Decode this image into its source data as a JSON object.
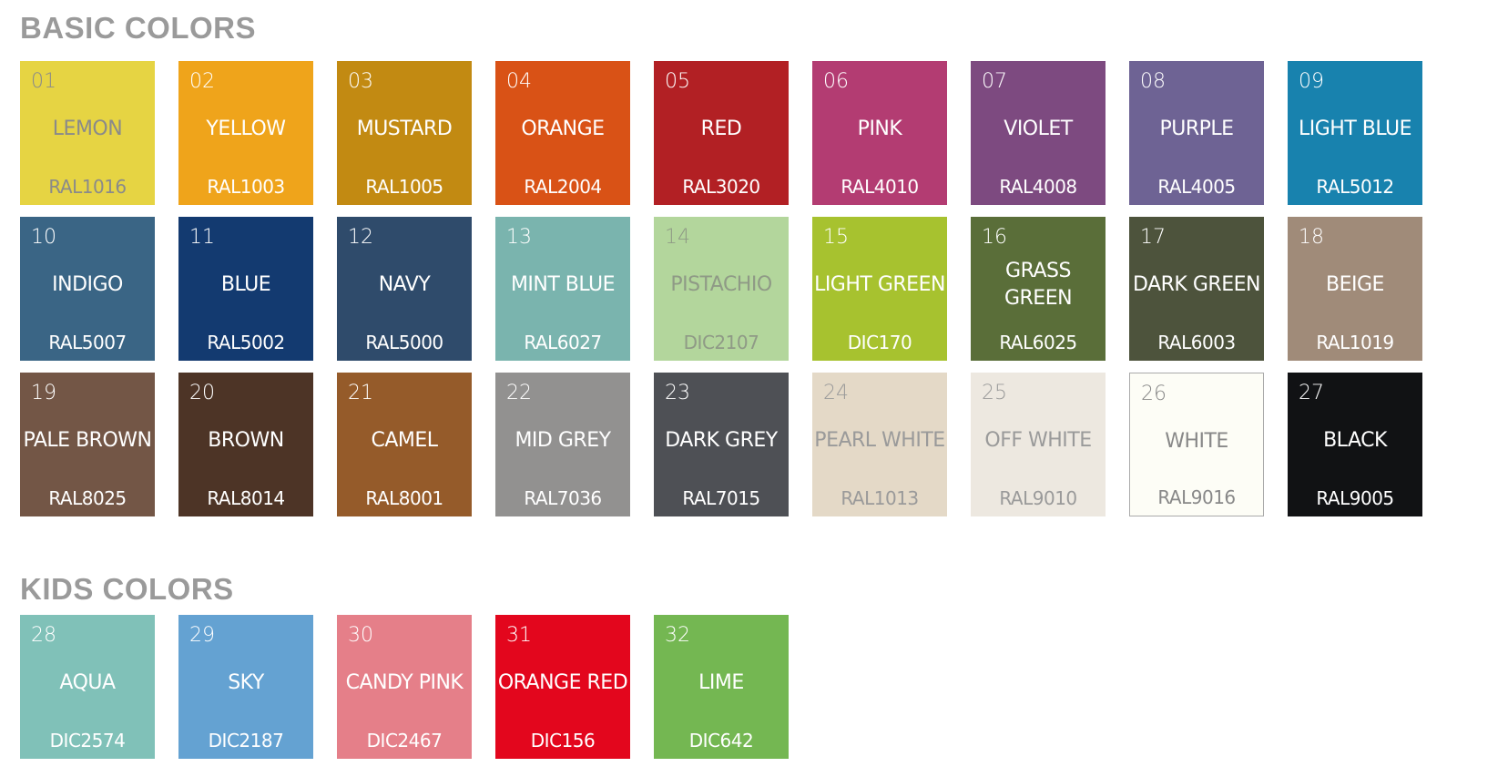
{
  "basic": {
    "title": "BASIC COLORS",
    "swatches": [
      {
        "num": "01",
        "name": "LEMON",
        "code": "RAL1016",
        "color": "#e6d443",
        "text": "#8a8a8a"
      },
      {
        "num": "02",
        "name": "YELLOW",
        "code": "RAL1003",
        "color": "#efa41b",
        "text": "#ffffff"
      },
      {
        "num": "03",
        "name": "MUSTARD",
        "code": "RAL1005",
        "color": "#c28a12",
        "text": "#ffffff"
      },
      {
        "num": "04",
        "name": "ORANGE",
        "code": "RAL2004",
        "color": "#d95216",
        "text": "#ffffff"
      },
      {
        "num": "05",
        "name": "RED",
        "code": "RAL3020",
        "color": "#b22024",
        "text": "#ffffff"
      },
      {
        "num": "06",
        "name": "PINK",
        "code": "RAL4010",
        "color": "#b33c72",
        "text": "#ffffff"
      },
      {
        "num": "07",
        "name": "VIOLET",
        "code": "RAL4008",
        "color": "#7d4a80",
        "text": "#ffffff"
      },
      {
        "num": "08",
        "name": "PURPLE",
        "code": "RAL4005",
        "color": "#6e6394",
        "text": "#ffffff"
      },
      {
        "num": "09",
        "name": "LIGHT BLUE",
        "code": "RAL5012",
        "color": "#1882ae",
        "text": "#ffffff"
      },
      {
        "num": "10",
        "name": "INDIGO",
        "code": "RAL5007",
        "color": "#3a6585",
        "text": "#ffffff"
      },
      {
        "num": "11",
        "name": "BLUE",
        "code": "RAL5002",
        "color": "#133a70",
        "text": "#ffffff"
      },
      {
        "num": "12",
        "name": "NAVY",
        "code": "RAL5000",
        "color": "#2f4b6b",
        "text": "#ffffff"
      },
      {
        "num": "13",
        "name": "MINT BLUE",
        "code": "RAL6027",
        "color": "#7ab4ae",
        "text": "#ffffff"
      },
      {
        "num": "14",
        "name": "PISTACHIO",
        "code": "DIC2107",
        "color": "#b3d69c",
        "text": "#8f9a86"
      },
      {
        "num": "15",
        "name": "LIGHT GREEN",
        "code": "DIC170",
        "color": "#a7c22f",
        "text": "#ffffff"
      },
      {
        "num": "16",
        "name": "GRASS GREEN",
        "code": "RAL6025",
        "color": "#5a6e39",
        "text": "#ffffff"
      },
      {
        "num": "17",
        "name": "DARK GREEN",
        "code": "RAL6003",
        "color": "#4d533c",
        "text": "#ffffff"
      },
      {
        "num": "18",
        "name": "BEIGE",
        "code": "RAL1019",
        "color": "#a08b79",
        "text": "#ffffff"
      },
      {
        "num": "19",
        "name": "PALE BROWN",
        "code": "RAL8025",
        "color": "#735646",
        "text": "#ffffff"
      },
      {
        "num": "20",
        "name": "BROWN",
        "code": "RAL8014",
        "color": "#4d3426",
        "text": "#ffffff"
      },
      {
        "num": "21",
        "name": "CAMEL",
        "code": "RAL8001",
        "color": "#955b2a",
        "text": "#ffffff"
      },
      {
        "num": "22",
        "name": "MID GREY",
        "code": "RAL7036",
        "color": "#929190",
        "text": "#ffffff"
      },
      {
        "num": "23",
        "name": "DARK GREY",
        "code": "RAL7015",
        "color": "#4e5055",
        "text": "#ffffff"
      },
      {
        "num": "24",
        "name": "PEARL WHITE",
        "code": "RAL1013",
        "color": "#e4d9c7",
        "text": "#9a9a9a"
      },
      {
        "num": "25",
        "name": "OFF WHITE",
        "code": "RAL9010",
        "color": "#ede8e0",
        "text": "#9a9a9a"
      },
      {
        "num": "26",
        "name": "WHITE",
        "code": "RAL9016",
        "color": "#fdfdf6",
        "text": "#888888",
        "border": "#aaaaaa"
      },
      {
        "num": "27",
        "name": "BLACK",
        "code": "RAL9005",
        "color": "#111214",
        "text": "#ffffff"
      }
    ]
  },
  "kids": {
    "title": "KIDS COLORS",
    "swatches": [
      {
        "num": "28",
        "name": "AQUA",
        "code": "DIC2574",
        "color": "#80c1b8",
        "text": "#ffffff"
      },
      {
        "num": "29",
        "name": "SKY",
        "code": "DIC2187",
        "color": "#64a2d2",
        "text": "#ffffff"
      },
      {
        "num": "30",
        "name": "CANDY PINK",
        "code": "DIC2467",
        "color": "#e57f89",
        "text": "#ffffff"
      },
      {
        "num": "31",
        "name": "ORANGE RED",
        "code": "DIC156",
        "color": "#e3061d",
        "text": "#ffffff"
      },
      {
        "num": "32",
        "name": "LIME",
        "code": "DIC642",
        "color": "#74b752",
        "text": "#ffffff"
      }
    ]
  }
}
